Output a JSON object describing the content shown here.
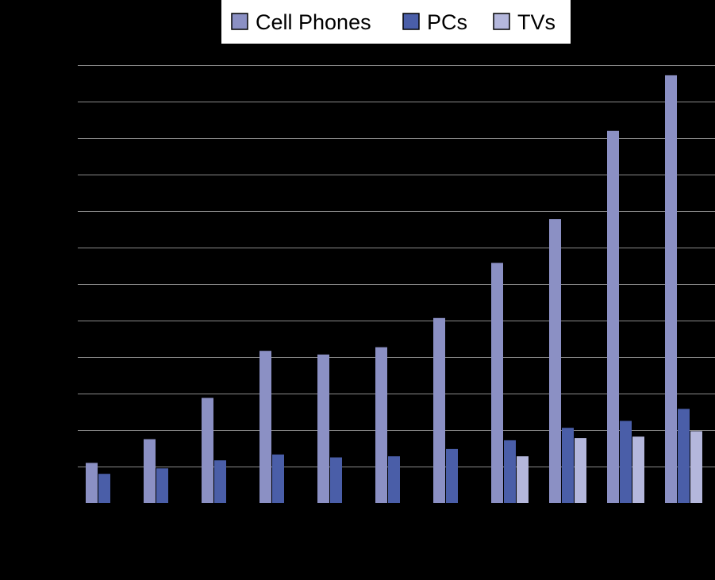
{
  "chart_data": {
    "type": "bar",
    "title": "",
    "xlabel": "",
    "ylabel": "",
    "categories": [
      "",
      "",
      "",
      "",
      "",
      "",
      "",
      "",
      "",
      "",
      ""
    ],
    "ylim": [
      0,
      1200
    ],
    "grid": true,
    "legend_position": "top-center",
    "series": [
      {
        "name": "Cell Phones",
        "color": "#8b90c4",
        "values": [
          110,
          175,
          288,
          417,
          407,
          427,
          507,
          658,
          778,
          1020,
          1172
        ]
      },
      {
        "name": "PCs",
        "color": "#4a5ea8",
        "values": [
          80,
          95,
          117,
          133,
          125,
          128,
          148,
          172,
          206,
          225,
          258
        ]
      },
      {
        "name": "TVs",
        "color": "#b4b7dc",
        "values": [
          0,
          0,
          0,
          0,
          0,
          0,
          0,
          128,
          178,
          182,
          197
        ]
      }
    ]
  }
}
